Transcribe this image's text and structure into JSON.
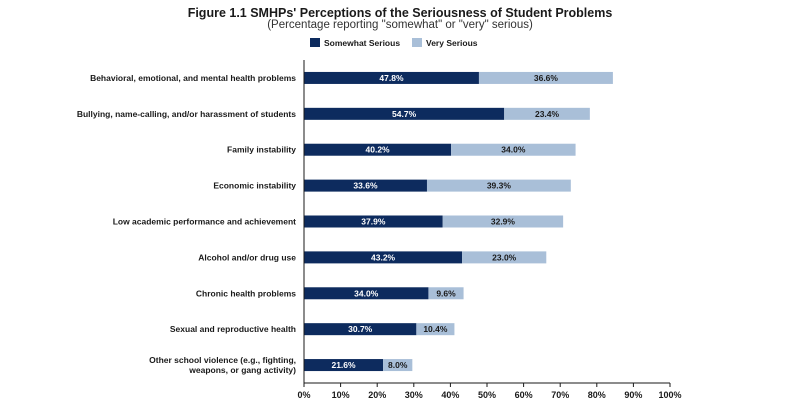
{
  "title": "Figure 1.1 SMHPs' Perceptions of the Seriousness of Student Problems",
  "subtitle": "(Percentage reporting \"somewhat\" or \"very\" serious)",
  "colors": {
    "somewhat": "#0d2b5e",
    "very": "#a9bfd8"
  },
  "chart_data": {
    "type": "bar",
    "orientation": "horizontal",
    "stacked": true,
    "title": "Figure 1.1 SMHPs' Perceptions of the Seriousness of Student Problems",
    "subtitle": "(Percentage reporting \"somewhat\" or \"very\" serious)",
    "categories": [
      [
        "Behavioral, emotional, and mental health problems"
      ],
      [
        "Bullying, name-calling, and/or harassment of students"
      ],
      [
        "Family instability"
      ],
      [
        "Economic instability"
      ],
      [
        "Low academic performance and achievement"
      ],
      [
        "Alcohol and/or drug use"
      ],
      [
        "Chronic health problems"
      ],
      [
        "Sexual and reproductive health"
      ],
      [
        "Other school violence (e.g., fighting,",
        "weapons, or gang activity)"
      ]
    ],
    "series": [
      {
        "name": "Somewhat Serious",
        "values": [
          47.8,
          54.7,
          40.2,
          33.6,
          37.9,
          43.2,
          34.0,
          30.7,
          21.6
        ],
        "labels": [
          "47.8%",
          "54.7%",
          "40.2%",
          "33.6%",
          "37.9%",
          "43.2%",
          "34.0%",
          "30.7%",
          "21.6%"
        ]
      },
      {
        "name": "Very Serious",
        "values": [
          36.6,
          23.4,
          34.0,
          39.3,
          32.9,
          23.0,
          9.6,
          10.4,
          8.0
        ],
        "labels": [
          "36.6%",
          "23.4%",
          "34.0%",
          "39.3%",
          "32.9%",
          "23.0%",
          "9.6%",
          "10.4%",
          "8.0%"
        ]
      }
    ],
    "xlim": [
      0,
      100
    ],
    "xticks": [
      "0%",
      "10%",
      "20%",
      "30%",
      "40%",
      "50%",
      "60%",
      "70%",
      "80%",
      "90%",
      "100%"
    ],
    "grid": false,
    "legend": "top"
  }
}
